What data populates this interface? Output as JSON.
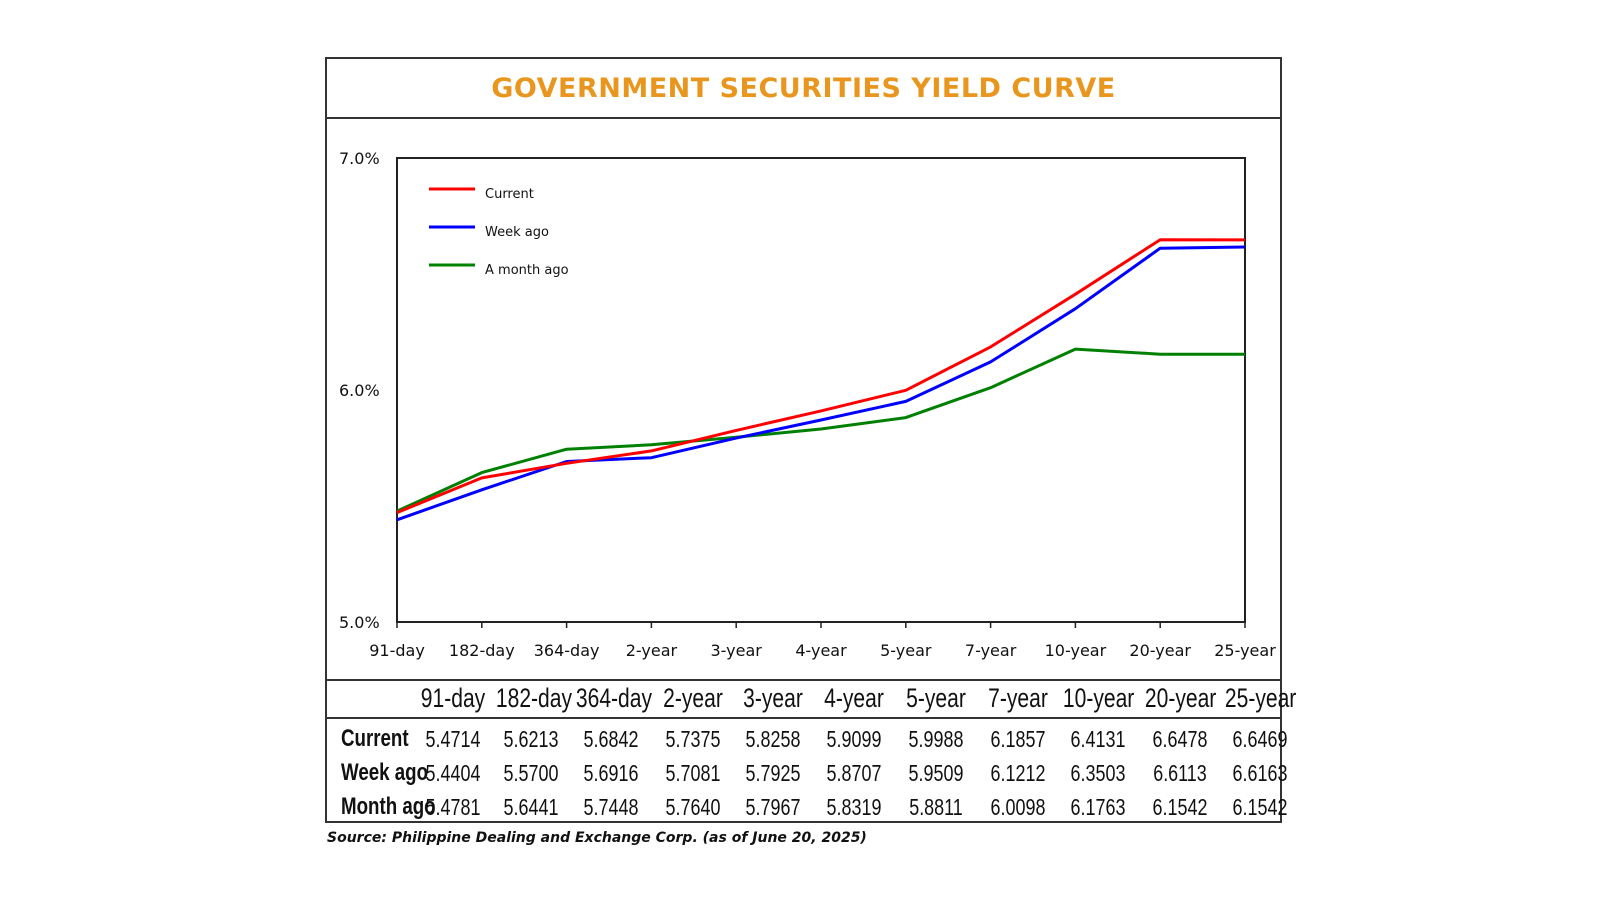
{
  "title": "GOVERNMENT SECURITIES YIELD CURVE",
  "colors": {
    "title": "#E8961E",
    "current": "#FF0000",
    "week_ago": "#0000FF",
    "month_ago": "#008000",
    "frame": "#333333"
  },
  "chart_data": {
    "type": "line",
    "title": "GOVERNMENT SECURITIES YIELD CURVE",
    "categories": [
      "91-day",
      "182-day",
      "364-day",
      "2-year",
      "3-year",
      "4-year",
      "5-year",
      "7-year",
      "10-year",
      "20-year",
      "25-year"
    ],
    "series": [
      {
        "name": "Current",
        "values": [
          5.4714,
          5.6213,
          5.6842,
          5.7375,
          5.8258,
          5.9099,
          5.9988,
          6.1857,
          6.4131,
          6.6478,
          6.6469
        ]
      },
      {
        "name": "Week ago",
        "values": [
          5.4404,
          5.57,
          5.6916,
          5.7081,
          5.7925,
          5.8707,
          5.9509,
          6.1212,
          6.3503,
          6.6113,
          6.6163
        ]
      },
      {
        "name": "A month ago",
        "values": [
          5.4781,
          5.6441,
          5.7448,
          5.764,
          5.7967,
          5.8319,
          5.8811,
          6.0098,
          6.1763,
          6.1542,
          6.1542
        ]
      }
    ],
    "ylim": [
      5.0,
      7.0
    ],
    "yticks": [
      "5.0%",
      "6.0%",
      "7.0%"
    ],
    "ytick_values": [
      5.0,
      6.0,
      7.0
    ],
    "xlabel": "",
    "ylabel": "",
    "legend_position": "top-left"
  },
  "table": {
    "columns": [
      "91-day",
      "182-day",
      "364-day",
      "2-year",
      "3-year",
      "4-year",
      "5-year",
      "7-year",
      "10-year",
      "20-year",
      "25-year"
    ],
    "rows": [
      {
        "label": "Current",
        "values": [
          "5.4714",
          "5.6213",
          "5.6842",
          "5.7375",
          "5.8258",
          "5.9099",
          "5.9988",
          "6.1857",
          "6.4131",
          "6.6478",
          "6.6469"
        ]
      },
      {
        "label": "Week ago",
        "values": [
          "5.4404",
          "5.5700",
          "5.6916",
          "5.7081",
          "5.7925",
          "5.8707",
          "5.9509",
          "6.1212",
          "6.3503",
          "6.6113",
          "6.6163"
        ]
      },
      {
        "label": "Month ago",
        "values": [
          "5.4781",
          "5.6441",
          "5.7448",
          "5.7640",
          "5.7967",
          "5.8319",
          "5.8811",
          "6.0098",
          "6.1763",
          "6.1542",
          "6.1542"
        ]
      }
    ]
  },
  "source": "Source: Philippine Dealing and Exchange Corp. (as of June 20, 2025)"
}
